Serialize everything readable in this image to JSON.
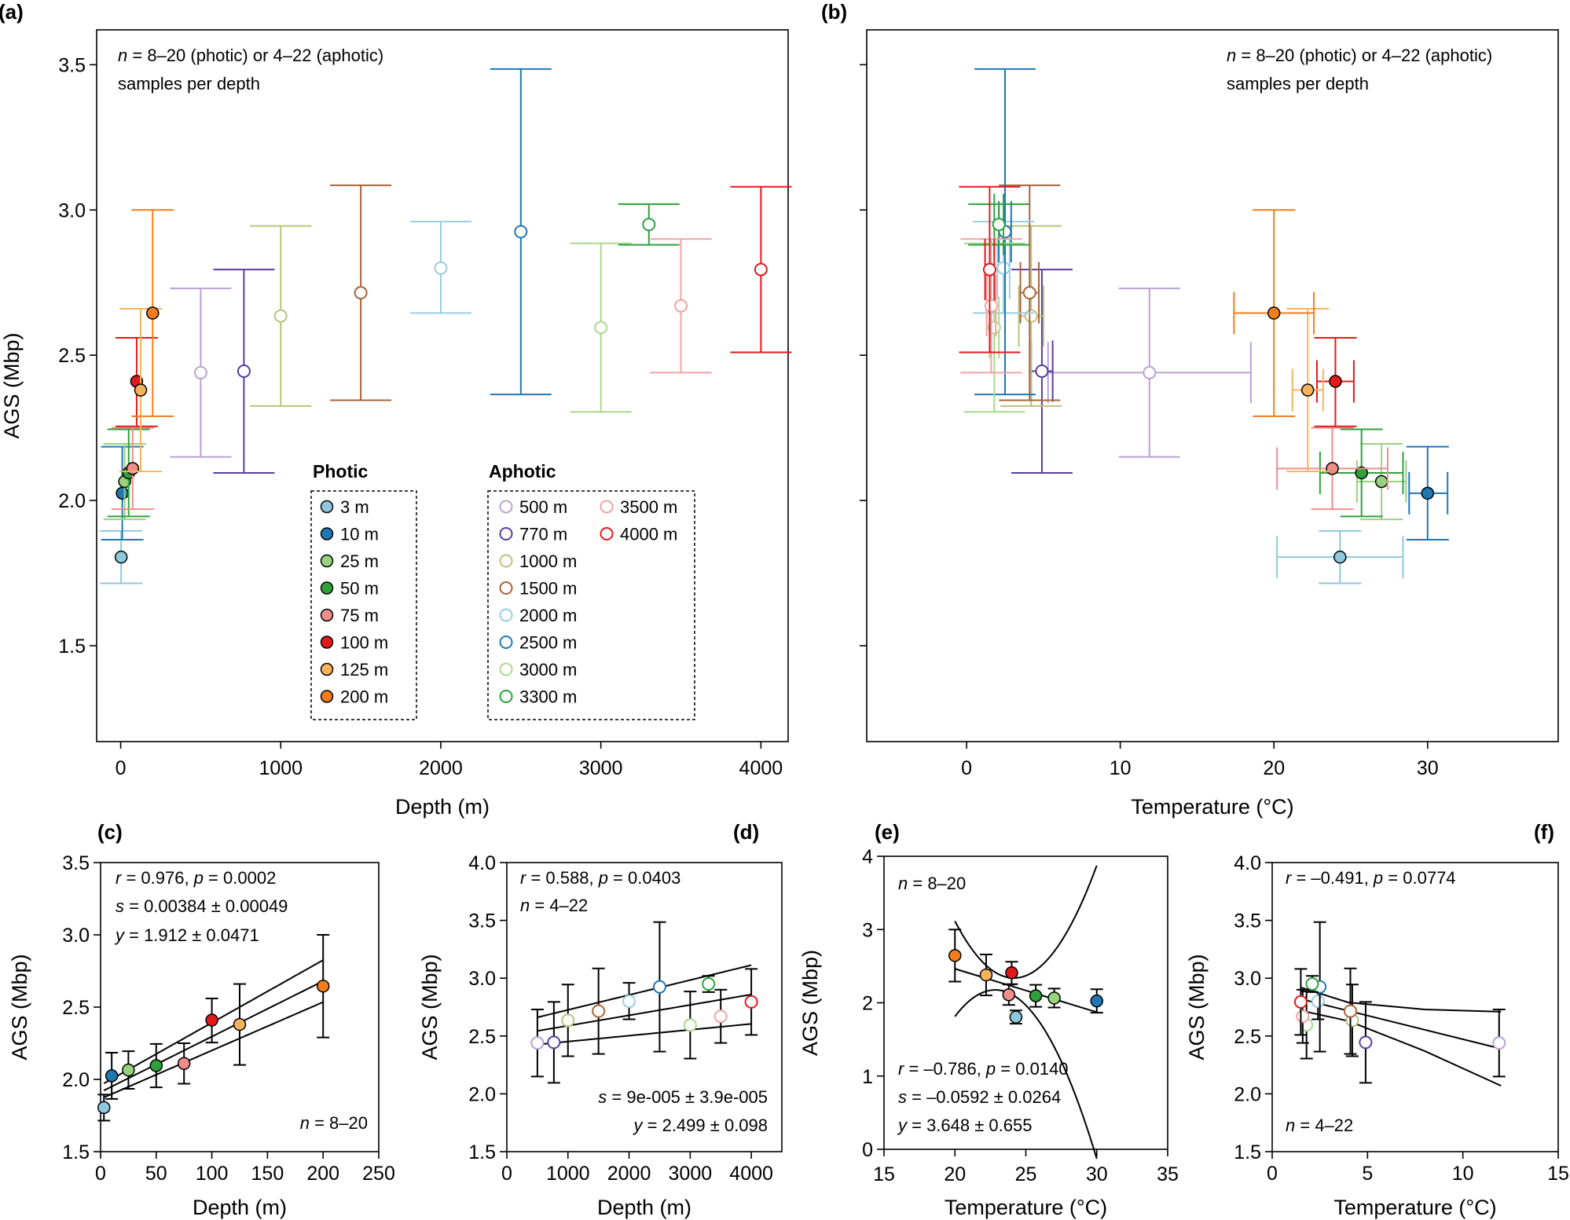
{
  "colors": {
    "3": "#8ec8de",
    "10": "#1f78b4",
    "25": "#98d27f",
    "50": "#2fa13c",
    "75": "#ef8d8b",
    "100": "#e31a1c",
    "125": "#f7b35c",
    "200": "#f07e1f",
    "500": "#bca0d4",
    "770": "#5b3c9f",
    "1000": "#bcc27a",
    "1500": "#a9643a",
    "2000": "#9bcde0",
    "2500": "#1f78b4",
    "3000": "#a9d98b",
    "3300": "#2ca23c",
    "3500": "#f4a1a1",
    "4000": "#e31a1c"
  },
  "chart_data": [
    {
      "panel": "(a)",
      "type": "scatter",
      "xlabel": "Depth (m)",
      "ylabel": "AGS (Mbp)",
      "xlim": [
        -150,
        4170
      ],
      "ylim": [
        1.17,
        3.62
      ],
      "xticks": [
        0,
        1000,
        2000,
        3000,
        4000
      ],
      "xtick_labels": [
        "0",
        "1000",
        "2000",
        "3000",
        "4000"
      ],
      "yticks": [
        1.5,
        2.0,
        2.5,
        3.0,
        3.5
      ],
      "ytick_labels": [
        "1.5",
        "2.0",
        "2.5",
        "3.0",
        "3.5"
      ],
      "annotation": [
        "n = 8–20 (photic) or 4–22 (aphotic)",
        "samples per depth"
      ],
      "points": [
        {
          "depth": "3",
          "group": "photic",
          "x": 3,
          "y": 1.805,
          "ylo": 1.715,
          "yhi": 1.895
        },
        {
          "depth": "10",
          "group": "photic",
          "x": 10,
          "y": 2.025,
          "ylo": 1.865,
          "yhi": 2.185
        },
        {
          "depth": "25",
          "group": "photic",
          "x": 25,
          "y": 2.065,
          "ylo": 1.935,
          "yhi": 2.195
        },
        {
          "depth": "50",
          "group": "photic",
          "x": 50,
          "y": 2.095,
          "ylo": 1.945,
          "yhi": 2.245
        },
        {
          "depth": "75",
          "group": "photic",
          "x": 75,
          "y": 2.11,
          "ylo": 1.97,
          "yhi": 2.25
        },
        {
          "depth": "100",
          "group": "photic",
          "x": 100,
          "y": 2.41,
          "ylo": 2.255,
          "yhi": 2.56
        },
        {
          "depth": "125",
          "group": "photic",
          "x": 125,
          "y": 2.38,
          "ylo": 2.1,
          "yhi": 2.66
        },
        {
          "depth": "200",
          "group": "photic",
          "x": 200,
          "y": 2.645,
          "ylo": 2.29,
          "yhi": 3.0
        },
        {
          "depth": "500",
          "group": "aphotic",
          "x": 500,
          "y": 2.44,
          "ylo": 2.15,
          "yhi": 2.73
        },
        {
          "depth": "770",
          "group": "aphotic",
          "x": 770,
          "y": 2.445,
          "ylo": 2.095,
          "yhi": 2.795
        },
        {
          "depth": "1000",
          "group": "aphotic",
          "x": 1000,
          "y": 2.635,
          "ylo": 2.325,
          "yhi": 2.945
        },
        {
          "depth": "1500",
          "group": "aphotic",
          "x": 1500,
          "y": 2.715,
          "ylo": 2.345,
          "yhi": 3.085
        },
        {
          "depth": "2000",
          "group": "aphotic",
          "x": 2000,
          "y": 2.8,
          "ylo": 2.645,
          "yhi": 2.96
        },
        {
          "depth": "2500",
          "group": "aphotic",
          "x": 2500,
          "y": 2.925,
          "ylo": 2.365,
          "yhi": 3.485
        },
        {
          "depth": "3000",
          "group": "aphotic",
          "x": 3000,
          "y": 2.595,
          "ylo": 2.305,
          "yhi": 2.885
        },
        {
          "depth": "3300",
          "group": "aphotic",
          "x": 3300,
          "y": 2.95,
          "ylo": 2.88,
          "yhi": 3.02
        },
        {
          "depth": "3500",
          "group": "aphotic",
          "x": 3500,
          "y": 2.67,
          "ylo": 2.44,
          "yhi": 2.9
        },
        {
          "depth": "4000",
          "group": "aphotic",
          "x": 4000,
          "y": 2.795,
          "ylo": 2.51,
          "yhi": 3.08
        }
      ],
      "legend": {
        "photic_title": "Photic",
        "aphotic_title": "Aphotic",
        "photic": [
          {
            "depth": "3",
            "label": "3 m"
          },
          {
            "depth": "10",
            "label": "10 m"
          },
          {
            "depth": "25",
            "label": "25 m"
          },
          {
            "depth": "50",
            "label": "50 m"
          },
          {
            "depth": "75",
            "label": "75 m"
          },
          {
            "depth": "100",
            "label": "100 m"
          },
          {
            "depth": "125",
            "label": "125 m"
          },
          {
            "depth": "200",
            "label": "200 m"
          }
        ],
        "aphotic_col1": [
          {
            "depth": "500",
            "label": "500 m"
          },
          {
            "depth": "770",
            "label": "770 m"
          },
          {
            "depth": "1000",
            "label": "1000 m"
          },
          {
            "depth": "1500",
            "label": "1500 m"
          },
          {
            "depth": "2000",
            "label": "2000 m"
          },
          {
            "depth": "2500",
            "label": "2500 m"
          },
          {
            "depth": "3000",
            "label": "3000 m"
          },
          {
            "depth": "3300",
            "label": "3300 m"
          }
        ],
        "aphotic_col2": [
          {
            "depth": "3500",
            "label": "3500 m"
          },
          {
            "depth": "4000",
            "label": "4000 m"
          }
        ]
      }
    },
    {
      "panel": "(b)",
      "type": "scatter",
      "xlabel": "Temperature (°C)",
      "ylabel": "",
      "xlim": [
        -6.5,
        38.5
      ],
      "ylim": [
        1.17,
        3.62
      ],
      "xticks": [
        0,
        10,
        20,
        30
      ],
      "xtick_labels": [
        "0",
        "10",
        "20",
        "30"
      ],
      "yticks": [
        1.5,
        2.0,
        2.5,
        3.0,
        3.5
      ],
      "ytick_labels": [
        "",
        "",
        "",
        "",
        ""
      ],
      "annotation": [
        "n = 8–20 (photic) or 4–22 (aphotic)",
        "samples per depth"
      ],
      "points": [
        {
          "depth": "3",
          "group": "photic",
          "x": 24.3,
          "xlo": 20.2,
          "xhi": 28.4,
          "y": 1.805,
          "ylo": 1.715,
          "yhi": 1.895
        },
        {
          "depth": "10",
          "group": "photic",
          "x": 30.0,
          "xlo": 28.8,
          "xhi": 31.3,
          "y": 2.025,
          "ylo": 1.865,
          "yhi": 2.185
        },
        {
          "depth": "25",
          "group": "photic",
          "x": 27.0,
          "xlo": 25.4,
          "xhi": 28.6,
          "y": 2.065,
          "ylo": 1.935,
          "yhi": 2.195
        },
        {
          "depth": "50",
          "group": "photic",
          "x": 25.7,
          "xlo": 23.0,
          "xhi": 28.4,
          "y": 2.095,
          "ylo": 1.945,
          "yhi": 2.245
        },
        {
          "depth": "75",
          "group": "photic",
          "x": 23.8,
          "xlo": 20.2,
          "xhi": 27.4,
          "y": 2.11,
          "ylo": 1.97,
          "yhi": 2.25
        },
        {
          "depth": "100",
          "group": "photic",
          "x": 24.0,
          "xlo": 22.8,
          "xhi": 25.2,
          "y": 2.41,
          "ylo": 2.255,
          "yhi": 2.56
        },
        {
          "depth": "125",
          "group": "photic",
          "x": 22.2,
          "xlo": 21.2,
          "xhi": 23.2,
          "y": 2.38,
          "ylo": 2.1,
          "yhi": 2.66
        },
        {
          "depth": "200",
          "group": "photic",
          "x": 20.0,
          "xlo": 17.4,
          "xhi": 22.6,
          "y": 2.645,
          "ylo": 2.29,
          "yhi": 3.0
        },
        {
          "depth": "500",
          "group": "aphotic",
          "x": 11.9,
          "xlo": 5.3,
          "xhi": 18.5,
          "y": 2.44,
          "ylo": 2.15,
          "yhi": 2.73
        },
        {
          "depth": "770",
          "group": "aphotic",
          "x": 4.9,
          "xlo": 4.2,
          "xhi": 5.6,
          "y": 2.445,
          "ylo": 2.095,
          "yhi": 2.795
        },
        {
          "depth": "1000",
          "group": "aphotic",
          "x": 4.2,
          "xlo": 3.4,
          "xhi": 5.0,
          "y": 2.635,
          "ylo": 2.325,
          "yhi": 2.945
        },
        {
          "depth": "1500",
          "group": "aphotic",
          "x": 4.1,
          "xlo": 3.5,
          "xhi": 4.7,
          "y": 2.715,
          "ylo": 2.345,
          "yhi": 3.085
        },
        {
          "depth": "2000",
          "group": "aphotic",
          "x": 2.4,
          "xlo": 2.0,
          "xhi": 2.8,
          "y": 2.8,
          "ylo": 2.645,
          "yhi": 2.96
        },
        {
          "depth": "2500",
          "group": "aphotic",
          "x": 2.5,
          "xlo": 2.1,
          "xhi": 2.9,
          "y": 2.925,
          "ylo": 2.365,
          "yhi": 3.485
        },
        {
          "depth": "3000",
          "group": "aphotic",
          "x": 1.8,
          "xlo": 1.5,
          "xhi": 2.1,
          "y": 2.595,
          "ylo": 2.305,
          "yhi": 2.885
        },
        {
          "depth": "3300",
          "group": "aphotic",
          "x": 2.1,
          "xlo": 1.8,
          "xhi": 2.4,
          "y": 2.95,
          "ylo": 2.88,
          "yhi": 3.02
        },
        {
          "depth": "3500",
          "group": "aphotic",
          "x": 1.6,
          "xlo": 1.3,
          "xhi": 1.9,
          "y": 2.67,
          "ylo": 2.44,
          "yhi": 2.9
        },
        {
          "depth": "4000",
          "group": "aphotic",
          "x": 1.5,
          "xlo": 1.2,
          "xhi": 1.8,
          "y": 2.795,
          "ylo": 2.51,
          "yhi": 3.08
        }
      ]
    },
    {
      "panel": "(c)",
      "type": "scatter",
      "xlabel": "Depth (m)",
      "ylabel": "AGS (Mbp)",
      "xlim": [
        0,
        250
      ],
      "ylim": [
        1.5,
        3.5
      ],
      "xticks": [
        0,
        50,
        100,
        150,
        200,
        250
      ],
      "xtick_labels": [
        "0",
        "50",
        "100",
        "150",
        "200",
        "250"
      ],
      "yticks": [
        1.5,
        2.0,
        2.5,
        3.0,
        3.5
      ],
      "ytick_labels": [
        "1.5",
        "2.0",
        "2.5",
        "3.0",
        "3.5"
      ],
      "annotations": [
        "r = 0.976,  p = 0.0002",
        "s = 0.00384 ± 0.00049",
        "y = 1.912 ± 0.0471",
        "n = 8–20"
      ],
      "fit": {
        "intercept": 1.912,
        "intercept_err": 0.0471,
        "slope": 0.00384,
        "slope_err": 0.00049,
        "xrange": [
          3,
          200
        ]
      },
      "points": [
        {
          "depth": "3",
          "x": 3,
          "y": 1.805,
          "ylo": 1.715,
          "yhi": 1.895
        },
        {
          "depth": "10",
          "x": 10,
          "y": 2.025,
          "ylo": 1.865,
          "yhi": 2.185
        },
        {
          "depth": "25",
          "x": 25,
          "y": 2.065,
          "ylo": 1.935,
          "yhi": 2.195
        },
        {
          "depth": "50",
          "x": 50,
          "y": 2.095,
          "ylo": 1.945,
          "yhi": 2.245
        },
        {
          "depth": "75",
          "x": 75,
          "y": 2.11,
          "ylo": 1.97,
          "yhi": 2.25
        },
        {
          "depth": "100",
          "x": 100,
          "y": 2.41,
          "ylo": 2.255,
          "yhi": 2.56
        },
        {
          "depth": "125",
          "x": 125,
          "y": 2.38,
          "ylo": 2.1,
          "yhi": 2.66
        },
        {
          "depth": "200",
          "x": 200,
          "y": 2.645,
          "ylo": 2.29,
          "yhi": 3.0
        }
      ]
    },
    {
      "panel": "(d)",
      "type": "scatter",
      "xlabel": "Depth (m)",
      "ylabel": "AGS (Mbp)",
      "xlim": [
        0,
        4500
      ],
      "ylim": [
        1.5,
        4.0
      ],
      "xticks": [
        0,
        1000,
        2000,
        3000,
        4000
      ],
      "xtick_labels": [
        "0",
        "1000",
        "2000",
        "3000",
        "4000"
      ],
      "yticks": [
        1.5,
        2.0,
        2.5,
        3.0,
        3.5,
        4.0
      ],
      "ytick_labels": [
        "1.5",
        "2.0",
        "2.5",
        "3.0",
        "3.5",
        "4.0"
      ],
      "annotations": [
        "r = 0.588,  p = 0.0403",
        "n = 4–22",
        "s = 9e-005 ± 3.9e-005",
        "y = 2.499 ± 0.098"
      ],
      "fit": {
        "intercept": 2.499,
        "intercept_err": 0.098,
        "slope": 9e-05,
        "slope_err": 3.9e-05,
        "xrange": [
          500,
          4000
        ]
      },
      "points": [
        {
          "depth": "500",
          "x": 500,
          "y": 2.44,
          "ylo": 2.15,
          "yhi": 2.73
        },
        {
          "depth": "770",
          "x": 770,
          "y": 2.445,
          "ylo": 2.095,
          "yhi": 2.795
        },
        {
          "depth": "1000",
          "x": 1000,
          "y": 2.635,
          "ylo": 2.325,
          "yhi": 2.945
        },
        {
          "depth": "1500",
          "x": 1500,
          "y": 2.715,
          "ylo": 2.345,
          "yhi": 3.085
        },
        {
          "depth": "2000",
          "x": 2000,
          "y": 2.8,
          "ylo": 2.645,
          "yhi": 2.96
        },
        {
          "depth": "2500",
          "x": 2500,
          "y": 2.925,
          "ylo": 2.365,
          "yhi": 3.485
        },
        {
          "depth": "3000",
          "x": 3000,
          "y": 2.595,
          "ylo": 2.305,
          "yhi": 2.885
        },
        {
          "depth": "3300",
          "x": 3300,
          "y": 2.95,
          "ylo": 2.88,
          "yhi": 3.02
        },
        {
          "depth": "3500",
          "x": 3500,
          "y": 2.67,
          "ylo": 2.44,
          "yhi": 2.9
        },
        {
          "depth": "4000",
          "x": 4000,
          "y": 2.795,
          "ylo": 2.51,
          "yhi": 3.08
        }
      ]
    },
    {
      "panel": "(e)",
      "type": "scatter",
      "xlabel": "Temperature (°C)",
      "ylabel": "AGS (Mbp)",
      "xlim": [
        15,
        35
      ],
      "ylim": [
        0,
        4
      ],
      "xticks": [
        15,
        20,
        25,
        30,
        35
      ],
      "xtick_labels": [
        "15",
        "20",
        "25",
        "30",
        "35"
      ],
      "yticks": [
        0,
        1,
        2,
        3,
        4
      ],
      "ytick_labels": [
        "0",
        "1",
        "2",
        "3",
        "4"
      ],
      "annotations": [
        "n = 8–20",
        "r = –0.786,  p = 0.0140",
        "s = –0.0592 ± 0.0264",
        "y = 3.648 ± 0.655"
      ],
      "fit": {
        "intercept": 3.648,
        "intercept_err": 0.655,
        "slope": -0.0592,
        "slope_err": 0.0264,
        "xrange": [
          20,
          30
        ],
        "band": "confidence"
      },
      "points": [
        {
          "depth": "3",
          "x": 24.3,
          "y": 1.805,
          "ylo": 1.715,
          "yhi": 1.895
        },
        {
          "depth": "10",
          "x": 30.0,
          "y": 2.025,
          "ylo": 1.865,
          "yhi": 2.185
        },
        {
          "depth": "25",
          "x": 27.0,
          "y": 2.065,
          "ylo": 1.935,
          "yhi": 2.195
        },
        {
          "depth": "50",
          "x": 25.7,
          "y": 2.095,
          "ylo": 1.945,
          "yhi": 2.245
        },
        {
          "depth": "75",
          "x": 23.8,
          "y": 2.11,
          "ylo": 1.97,
          "yhi": 2.25
        },
        {
          "depth": "100",
          "x": 24.0,
          "y": 2.41,
          "ylo": 2.255,
          "yhi": 2.56
        },
        {
          "depth": "125",
          "x": 22.2,
          "y": 2.38,
          "ylo": 2.1,
          "yhi": 2.66
        },
        {
          "depth": "200",
          "x": 20.0,
          "y": 2.645,
          "ylo": 2.29,
          "yhi": 3.0
        }
      ]
    },
    {
      "panel": "(f)",
      "type": "scatter",
      "xlabel": "Temperature (°C)",
      "ylabel": "AGS (Mbp)",
      "xlim": [
        0,
        15
      ],
      "ylim": [
        1.5,
        4.0
      ],
      "xticks": [
        0,
        5,
        10,
        15
      ],
      "xtick_labels": [
        "0",
        "5",
        "10",
        "15"
      ],
      "yticks": [
        1.5,
        2.0,
        2.5,
        3.0,
        3.5,
        4.0
      ],
      "ytick_labels": [
        "1.5",
        "2.0",
        "2.5",
        "3.0",
        "3.5",
        "4.0"
      ],
      "annotations": [
        "r = –0.491,  p = 0.0774",
        "n = 4–22"
      ],
      "fit": {
        "line": [
          [
            1.5,
            2.82
          ],
          [
            12,
            2.39
          ]
        ],
        "upper": [
          [
            1.5,
            2.92
          ],
          [
            4,
            2.79
          ],
          [
            8,
            2.73
          ],
          [
            12,
            2.71
          ]
        ],
        "lower": [
          [
            1.5,
            2.72
          ],
          [
            4,
            2.63
          ],
          [
            8,
            2.37
          ],
          [
            12,
            2.07
          ]
        ]
      },
      "points": [
        {
          "depth": "500",
          "x": 11.9,
          "y": 2.44,
          "ylo": 2.15,
          "yhi": 2.73
        },
        {
          "depth": "770",
          "x": 4.9,
          "y": 2.445,
          "ylo": 2.095,
          "yhi": 2.795
        },
        {
          "depth": "1000",
          "x": 4.2,
          "y": 2.635,
          "ylo": 2.325,
          "yhi": 2.945
        },
        {
          "depth": "1500",
          "x": 4.1,
          "y": 2.715,
          "ylo": 2.345,
          "yhi": 3.085
        },
        {
          "depth": "2000",
          "x": 2.4,
          "y": 2.8,
          "ylo": 2.645,
          "yhi": 2.96
        },
        {
          "depth": "2500",
          "x": 2.5,
          "y": 2.925,
          "ylo": 2.365,
          "yhi": 3.485
        },
        {
          "depth": "3000",
          "x": 1.8,
          "y": 2.595,
          "ylo": 2.305,
          "yhi": 2.885
        },
        {
          "depth": "3300",
          "x": 2.1,
          "y": 2.95,
          "ylo": 2.88,
          "yhi": 3.02
        },
        {
          "depth": "3500",
          "x": 1.6,
          "y": 2.67,
          "ylo": 2.44,
          "yhi": 2.9
        },
        {
          "depth": "4000",
          "x": 1.5,
          "y": 2.795,
          "ylo": 2.51,
          "yhi": 3.08
        }
      ]
    }
  ]
}
